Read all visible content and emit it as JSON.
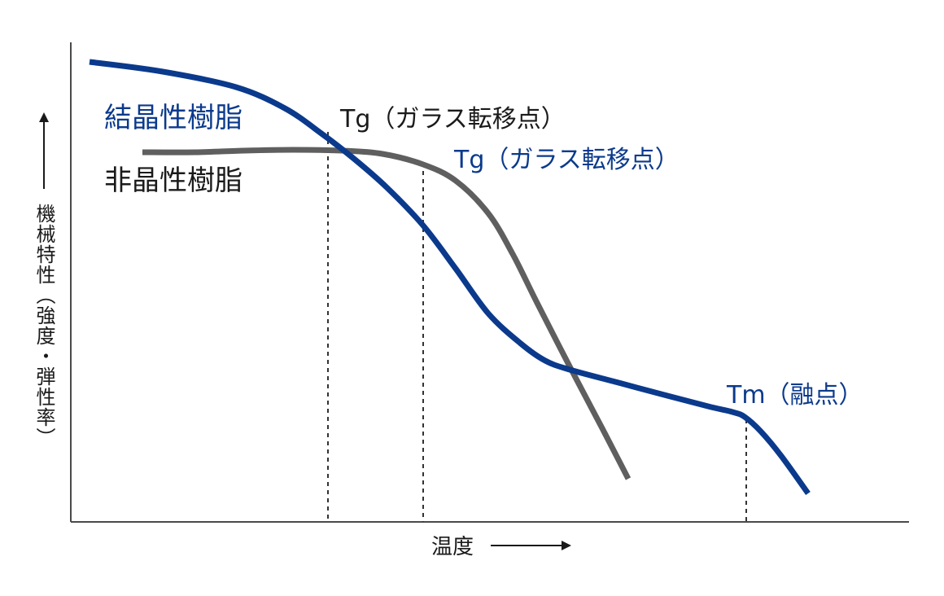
{
  "colors": {
    "crystalline": "#0b3a8c",
    "amorphous": "#5f5f5f",
    "axis": "#4a4a4a",
    "text_dark": "#1a1a1a"
  },
  "chart_data": {
    "type": "line",
    "xlabel": "温度",
    "ylabel": "機械特性（強度・弾性率）",
    "axes_ticks": false,
    "grid": false,
    "series": [
      {
        "name": "結晶性樹脂",
        "color": "#0b3a8c",
        "points": [
          [
            110,
            76
          ],
          [
            200,
            88
          ],
          [
            290,
            107
          ],
          [
            350,
            133
          ],
          [
            395,
            164
          ],
          [
            435,
            195
          ],
          [
            475,
            230
          ],
          [
            520,
            277
          ],
          [
            560,
            330
          ],
          [
            600,
            385
          ],
          [
            640,
            422
          ],
          [
            670,
            443
          ],
          [
            700,
            454
          ],
          [
            760,
            470
          ],
          [
            820,
            486
          ],
          [
            870,
            499
          ],
          [
            900,
            506
          ],
          [
            915,
            512
          ],
          [
            935,
            530
          ],
          [
            960,
            560
          ],
          [
            993,
            606
          ]
        ]
      },
      {
        "name": "非晶性樹脂",
        "color": "#5f5f5f",
        "points": [
          [
            175,
            187
          ],
          [
            240,
            187
          ],
          [
            300,
            185
          ],
          [
            360,
            184
          ],
          [
            420,
            185
          ],
          [
            470,
            189
          ],
          [
            520,
            202
          ],
          [
            560,
            222
          ],
          [
            600,
            262
          ],
          [
            630,
            312
          ],
          [
            660,
            372
          ],
          [
            700,
            450
          ],
          [
            740,
            526
          ],
          [
            772,
            588
          ]
        ]
      }
    ],
    "annotations": [
      {
        "text": "Tg（ガラス転移点）",
        "series": "非晶性樹脂",
        "x": 403
      },
      {
        "text": "Tg（ガラス転移点）",
        "series": "結晶性樹脂",
        "x": 520
      },
      {
        "text": "Tm（融点）",
        "series": "結晶性樹脂",
        "x": 917
      }
    ]
  }
}
